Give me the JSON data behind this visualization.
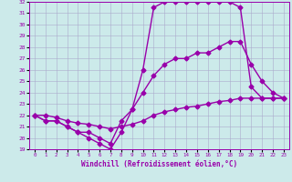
{
  "xlabel": "Windchill (Refroidissement éolien,°C)",
  "xlim": [
    -0.5,
    23.5
  ],
  "ylim": [
    19,
    32
  ],
  "xticks": [
    0,
    1,
    2,
    3,
    4,
    5,
    6,
    7,
    8,
    9,
    10,
    11,
    12,
    13,
    14,
    15,
    16,
    17,
    18,
    19,
    20,
    21,
    22,
    23
  ],
  "yticks": [
    19,
    20,
    21,
    22,
    23,
    24,
    25,
    26,
    27,
    28,
    29,
    30,
    31,
    32
  ],
  "bg_color": "#cceaea",
  "grid_color": "#aaaacc",
  "line_color": "#9900aa",
  "line1_x": [
    0,
    1,
    2,
    3,
    4,
    5,
    6,
    7,
    8,
    9,
    10,
    11,
    12,
    13,
    14,
    15,
    16,
    17,
    18,
    19,
    20,
    21,
    22,
    23
  ],
  "line1_y": [
    22.0,
    21.5,
    21.5,
    21.0,
    20.5,
    20.0,
    19.5,
    19.0,
    20.5,
    22.5,
    26.0,
    31.5,
    32.0,
    32.0,
    32.0,
    32.0,
    32.0,
    32.0,
    32.0,
    31.5,
    24.5,
    23.5,
    23.5,
    23.5
  ],
  "line2_x": [
    0,
    1,
    2,
    3,
    4,
    5,
    6,
    7,
    8,
    9,
    10,
    11,
    12,
    13,
    14,
    15,
    16,
    17,
    18,
    19,
    20,
    21,
    22,
    23
  ],
  "line2_y": [
    22.0,
    21.5,
    21.5,
    21.0,
    20.5,
    20.5,
    20.0,
    19.5,
    21.5,
    22.5,
    24.0,
    25.5,
    26.5,
    27.0,
    27.0,
    27.5,
    27.5,
    28.0,
    28.5,
    28.5,
    26.5,
    25.0,
    24.0,
    23.5
  ],
  "line3_x": [
    0,
    1,
    2,
    3,
    4,
    5,
    6,
    7,
    8,
    9,
    10,
    11,
    12,
    13,
    14,
    15,
    16,
    17,
    18,
    19,
    20,
    21,
    22,
    23
  ],
  "line3_y": [
    22.0,
    22.0,
    21.8,
    21.5,
    21.3,
    21.2,
    21.0,
    20.8,
    21.0,
    21.2,
    21.5,
    22.0,
    22.3,
    22.5,
    22.7,
    22.8,
    23.0,
    23.2,
    23.3,
    23.5,
    23.5,
    23.5,
    23.5,
    23.5
  ],
  "marker": "D",
  "markersize": 2.5,
  "linewidth": 1.0
}
